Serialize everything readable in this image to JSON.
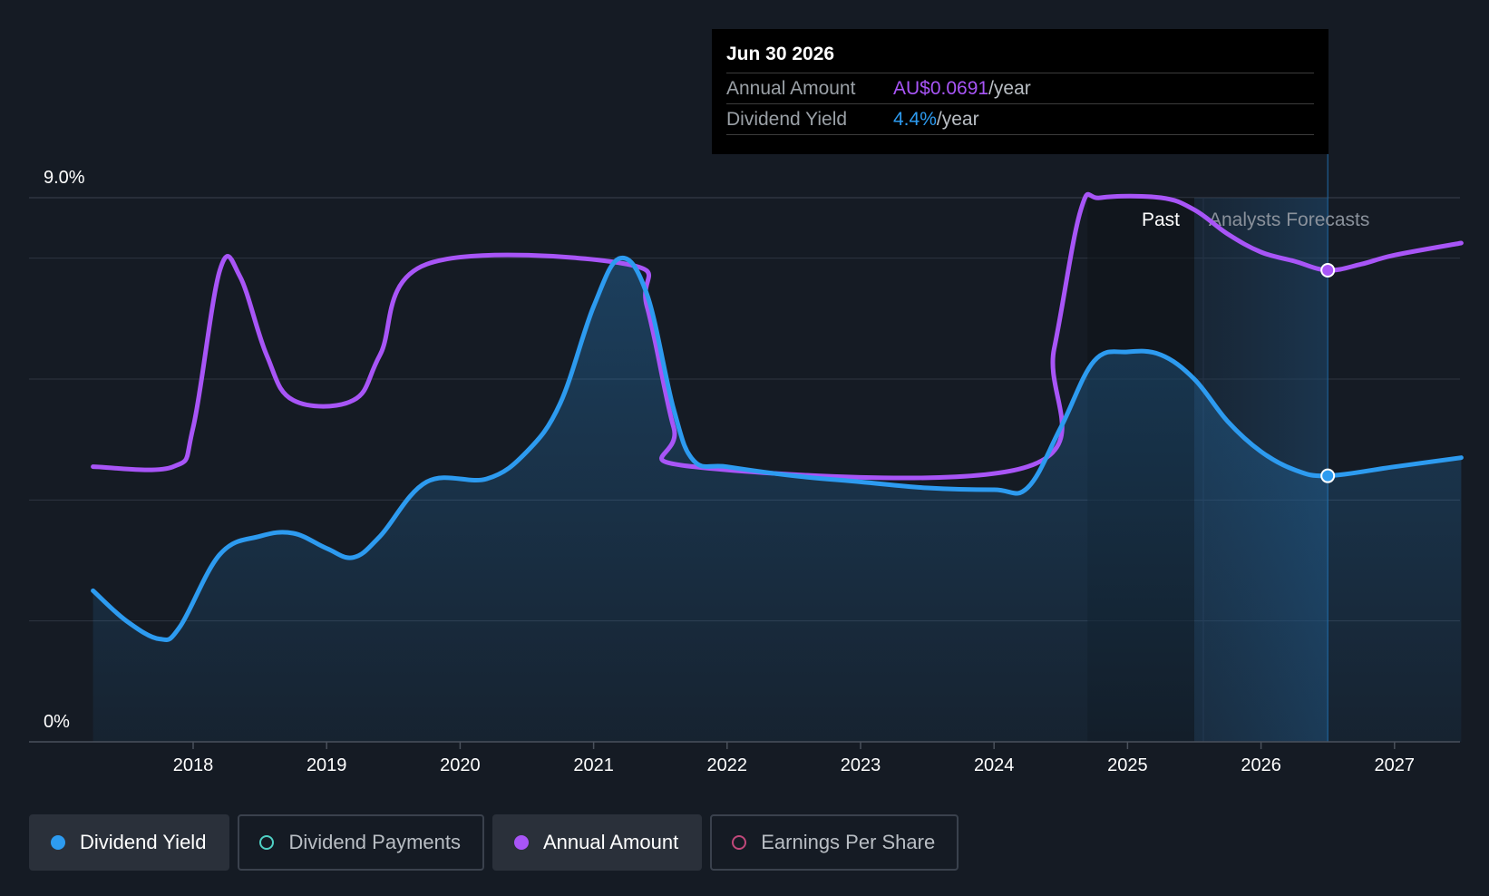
{
  "tooltip": {
    "date": "Jun 30 2026",
    "rows": [
      {
        "label": "Annual Amount",
        "value": "AU$0.0691",
        "suffix": "/year"
      },
      {
        "label": "Dividend Yield",
        "value": "4.4%",
        "suffix": "/year"
      }
    ]
  },
  "regions": {
    "past": "Past",
    "forecast": "Analysts Forecasts"
  },
  "legend": [
    {
      "label": "Dividend Yield",
      "color": "#2d9bf0",
      "active": true,
      "marker": "filled"
    },
    {
      "label": "Dividend Payments",
      "color": "#4fd1c5",
      "active": false,
      "marker": "hollow"
    },
    {
      "label": "Annual Amount",
      "color": "#a855f7",
      "active": true,
      "marker": "filled"
    },
    {
      "label": "Earnings Per Share",
      "color": "#c0487a",
      "active": false,
      "marker": "hollow"
    }
  ],
  "colors": {
    "yield": "#2d9bf0",
    "amount": "#a855f7",
    "background": "#151b24",
    "grid": "#2e3540"
  },
  "chart_data": {
    "type": "line",
    "y_axis": {
      "top_label": "9.0%",
      "bottom_label": "0%",
      "ylim": [
        0,
        9.0
      ],
      "unit": "%"
    },
    "x_ticks": [
      "2018",
      "2019",
      "2020",
      "2021",
      "2022",
      "2023",
      "2024",
      "2025",
      "2026",
      "2027"
    ],
    "xlim": [
      2017.2,
      2027.5
    ],
    "forecast_start": 2025.5,
    "highlight_x": 2026.5,
    "grid": true,
    "series": [
      {
        "name": "Dividend Yield",
        "color": "#2d9bf0",
        "area": true,
        "points": [
          [
            2017.25,
            2.5
          ],
          [
            2017.5,
            2.0
          ],
          [
            2017.75,
            1.7
          ],
          [
            2017.9,
            1.9
          ],
          [
            2018.2,
            3.1
          ],
          [
            2018.5,
            3.4
          ],
          [
            2018.75,
            3.45
          ],
          [
            2019.0,
            3.2
          ],
          [
            2019.2,
            3.05
          ],
          [
            2019.4,
            3.4
          ],
          [
            2019.75,
            4.3
          ],
          [
            2020.2,
            4.35
          ],
          [
            2020.5,
            4.8
          ],
          [
            2020.75,
            5.6
          ],
          [
            2021.0,
            7.2
          ],
          [
            2021.2,
            8.0
          ],
          [
            2021.4,
            7.4
          ],
          [
            2021.6,
            5.5
          ],
          [
            2021.75,
            4.65
          ],
          [
            2022.0,
            4.55
          ],
          [
            2022.5,
            4.4
          ],
          [
            2023.0,
            4.3
          ],
          [
            2023.5,
            4.2
          ],
          [
            2024.0,
            4.17
          ],
          [
            2024.25,
            4.2
          ],
          [
            2024.5,
            5.2
          ],
          [
            2024.75,
            6.3
          ],
          [
            2025.0,
            6.45
          ],
          [
            2025.25,
            6.4
          ],
          [
            2025.5,
            6.0
          ],
          [
            2025.75,
            5.3
          ],
          [
            2026.0,
            4.8
          ],
          [
            2026.25,
            4.5
          ],
          [
            2026.5,
            4.4
          ],
          [
            2027.0,
            4.55
          ],
          [
            2027.5,
            4.7
          ]
        ]
      },
      {
        "name": "Annual Amount",
        "color": "#a855f7",
        "area": false,
        "points": [
          [
            2017.25,
            4.55
          ],
          [
            2017.85,
            4.55
          ],
          [
            2018.0,
            5.2
          ],
          [
            2018.2,
            7.8
          ],
          [
            2018.35,
            7.7
          ],
          [
            2018.55,
            6.4
          ],
          [
            2018.75,
            5.65
          ],
          [
            2019.2,
            5.65
          ],
          [
            2019.4,
            6.4
          ],
          [
            2019.75,
            7.9
          ],
          [
            2021.25,
            7.9
          ],
          [
            2021.4,
            7.2
          ],
          [
            2021.6,
            5.2
          ],
          [
            2021.75,
            4.55
          ],
          [
            2024.25,
            4.55
          ],
          [
            2024.45,
            6.5
          ],
          [
            2024.65,
            8.8
          ],
          [
            2024.8,
            9.0
          ],
          [
            2025.25,
            9.0
          ],
          [
            2025.5,
            8.8
          ],
          [
            2025.75,
            8.4
          ],
          [
            2026.0,
            8.1
          ],
          [
            2026.25,
            7.95
          ],
          [
            2026.5,
            7.8
          ],
          [
            2026.75,
            7.9
          ],
          [
            2027.0,
            8.05
          ],
          [
            2027.5,
            8.25
          ]
        ]
      }
    ]
  }
}
